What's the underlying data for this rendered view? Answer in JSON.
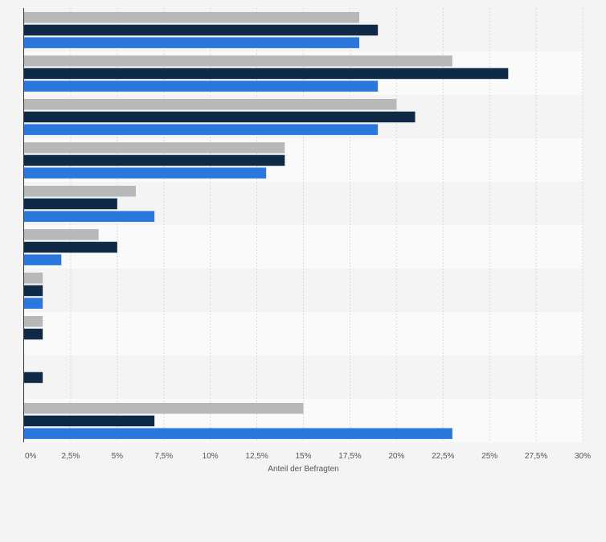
{
  "chart_data": {
    "type": "bar",
    "orientation": "horizontal",
    "categories": [
      "",
      "",
      "",
      "",
      "",
      "",
      "",
      "",
      "",
      ""
    ],
    "series": [
      {
        "color": "#b8b8b8",
        "values": [
          18,
          23,
          20,
          14,
          6,
          4,
          1,
          1,
          null,
          15
        ]
      },
      {
        "color": "#0f2a46",
        "values": [
          19,
          26,
          21,
          14,
          5,
          5,
          1,
          1,
          1,
          7
        ]
      },
      {
        "color": "#2a78dc",
        "values": [
          18,
          19,
          19,
          13,
          7,
          2,
          1,
          null,
          null,
          23
        ]
      }
    ],
    "xlabel": "Anteil der Befragten",
    "xlim": [
      0,
      30
    ],
    "xticks": [
      "0%",
      "2,5%",
      "5%",
      "7,5%",
      "10%",
      "12,5%",
      "15%",
      "17,5%",
      "20%",
      "22,5%",
      "25%",
      "27,5%",
      "30%"
    ],
    "grid": true,
    "legend": "none"
  }
}
